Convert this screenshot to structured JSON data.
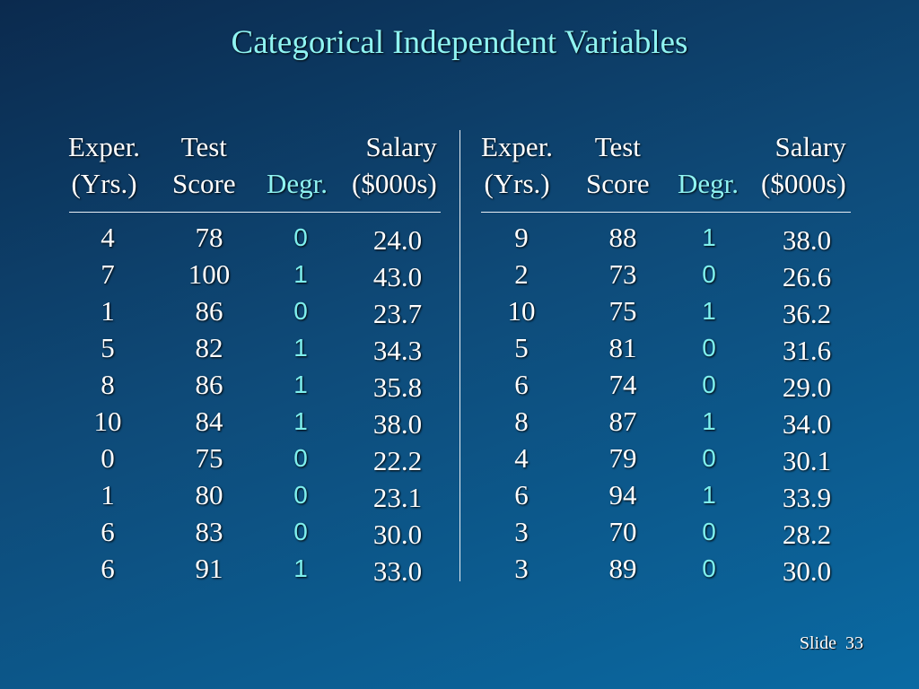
{
  "title": "Categorical Independent Variables",
  "headers": {
    "exper_1": "Exper.",
    "exper_2": "(Yrs.)",
    "test_1": "Test",
    "test_2": "Score",
    "degr": "Degr.",
    "salary_1": "Salary",
    "salary_2": "($000s)"
  },
  "left_rows": [
    [
      "4",
      "78",
      "0",
      "24.0"
    ],
    [
      "7",
      "100",
      "1",
      "43.0"
    ],
    [
      "1",
      "86",
      "0",
      "23.7"
    ],
    [
      "5",
      "82",
      "1",
      "34.3"
    ],
    [
      "8",
      "86",
      "1",
      "35.8"
    ],
    [
      "10",
      "84",
      "1",
      "38.0"
    ],
    [
      "0",
      "75",
      "0",
      "22.2"
    ],
    [
      "1",
      "80",
      "0",
      "23.1"
    ],
    [
      "6",
      "83",
      "0",
      "30.0"
    ],
    [
      "6",
      "91",
      "1",
      "33.0"
    ]
  ],
  "right_rows": [
    [
      "9",
      "88",
      "1",
      "38.0"
    ],
    [
      "2",
      "73",
      "0",
      "26.6"
    ],
    [
      "10",
      "75",
      "1",
      "36.2"
    ],
    [
      "5",
      "81",
      "0",
      "31.6"
    ],
    [
      "6",
      "74",
      "0",
      "29.0"
    ],
    [
      "8",
      "87",
      "1",
      "34.0"
    ],
    [
      "4",
      "79",
      "0",
      "30.1"
    ],
    [
      "6",
      "94",
      "1",
      "33.9"
    ],
    [
      "3",
      "70",
      "0",
      "28.2"
    ],
    [
      "3",
      "89",
      "0",
      "30.0"
    ]
  ],
  "footer": {
    "slide_label": "Slide",
    "slide_number": "33"
  },
  "colors": {
    "accent": "#8ff4f2"
  }
}
